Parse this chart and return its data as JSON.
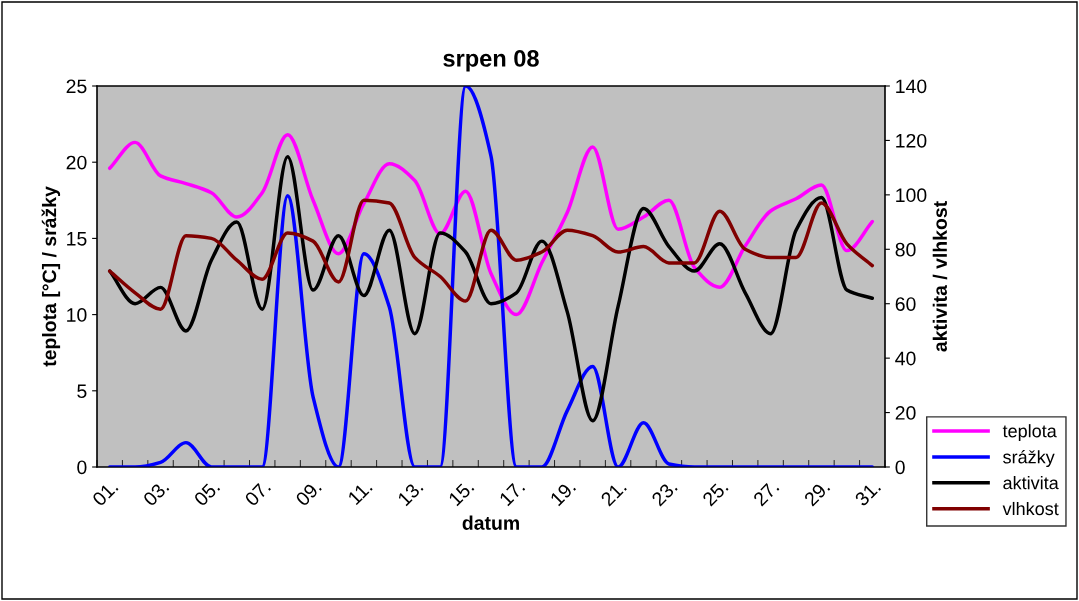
{
  "chart_data": {
    "type": "line",
    "title": "srpen 08",
    "xlabel": "datum",
    "ylabel": "teplota [°C] / srážky",
    "y2label": "aktivita / vlhkost",
    "categories": [
      "01.",
      null,
      "03.",
      null,
      "05.",
      null,
      "07.",
      null,
      "09.",
      null,
      "11.",
      null,
      "13.",
      null,
      "15.",
      null,
      "17.",
      null,
      "19.",
      null,
      "21.",
      null,
      "23.",
      null,
      "25.",
      null,
      "27.",
      null,
      "29.",
      null,
      "31."
    ],
    "series": [
      {
        "name": "teplota",
        "color": "#ff00ff",
        "values": [
          19.6,
          21.3,
          19.1,
          18.6,
          18.0,
          16.4,
          18.0,
          21.8,
          17.5,
          14.0,
          17.3,
          19.9,
          18.8,
          15.3,
          18.1,
          12.7,
          10.0,
          13.4,
          16.7,
          21.0,
          15.6,
          16.4,
          17.5,
          13.1,
          11.8,
          14.5,
          16.8,
          17.6,
          18.5,
          14.2,
          16.1
        ]
      },
      {
        "name": "srážky",
        "color": "#0000ff",
        "values": [
          0,
          0,
          0.3,
          1.6,
          0,
          0,
          0,
          17.8,
          4.6,
          0,
          14.0,
          10.5,
          0,
          0,
          25,
          20.4,
          0,
          0,
          3.7,
          6.6,
          0,
          2.9,
          0.2,
          0,
          0,
          0,
          0,
          0,
          0,
          0,
          0
        ]
      },
      {
        "name": "aktivita",
        "color": "#000000",
        "axis": "y2",
        "values": [
          72,
          60,
          66,
          50,
          76,
          90,
          58,
          114,
          65,
          85,
          63,
          87,
          49,
          86,
          79,
          60,
          64,
          83,
          57,
          17,
          59,
          95,
          81,
          72,
          82,
          64,
          49,
          87,
          99,
          65,
          62
        ]
      },
      {
        "name": "vlhkost",
        "color": "#800000",
        "axis": "y2",
        "values": [
          72,
          64,
          58,
          85,
          84,
          76,
          69,
          86,
          83,
          68,
          98,
          97,
          77,
          70,
          61,
          87,
          76,
          79,
          87,
          85,
          79,
          81,
          75,
          75,
          94,
          80,
          77,
          77,
          97,
          82,
          74
        ]
      }
    ],
    "ylim": [
      0,
      25
    ],
    "yticks": [
      0,
      5,
      10,
      15,
      20,
      25
    ],
    "y2lim": [
      0,
      140
    ],
    "y2ticks": [
      0,
      20,
      40,
      60,
      80,
      100,
      120,
      140
    ],
    "grid": false,
    "legend": "bottom right",
    "marker": "none",
    "line_style": "solid"
  }
}
